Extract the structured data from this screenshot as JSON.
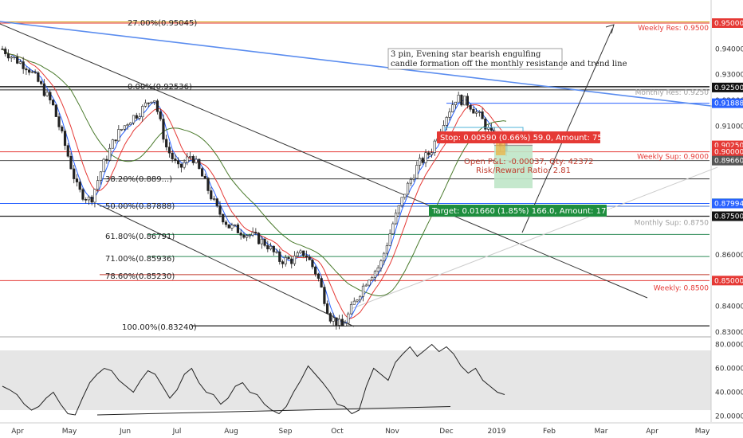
{
  "chart_data": [
    {
      "type": "candlestick",
      "title": "",
      "instrument_scale": "price",
      "x_ticks": [
        "Apr",
        "May",
        "Jun",
        "Jul",
        "Aug",
        "Sep",
        "Oct",
        "Nov",
        "Dec",
        "2019",
        "Feb",
        "Mar",
        "Apr",
        "May"
      ],
      "y_ticks": [
        "0.94000",
        "0.93000",
        "0.92000",
        "0.91000",
        "0.90000",
        "0.88000",
        "0.87500",
        "0.86000",
        "0.85000",
        "0.84000",
        "0.83000"
      ],
      "ylim": [
        0.8265,
        0.953
      ],
      "grid": false,
      "close_path": [
        [
          "Apr",
          0.94
        ],
        [
          "Apr",
          0.936
        ],
        [
          "Apr",
          0.933
        ],
        [
          "May",
          0.926
        ],
        [
          "May",
          0.918
        ],
        [
          "May",
          0.902
        ],
        [
          "May",
          0.885
        ],
        [
          "May",
          0.881
        ],
        [
          "Jun",
          0.895
        ],
        [
          "Jun",
          0.906
        ],
        [
          "Jun",
          0.912
        ],
        [
          "Jun",
          0.916
        ],
        [
          "Jun",
          0.922
        ],
        [
          "Jul",
          0.902
        ],
        [
          "Jul",
          0.893
        ],
        [
          "Jul",
          0.899
        ],
        [
          "Jul",
          0.889
        ],
        [
          "Aug",
          0.878
        ],
        [
          "Aug",
          0.871
        ],
        [
          "Aug",
          0.869
        ],
        [
          "Aug",
          0.867
        ],
        [
          "Sep",
          0.864
        ],
        [
          "Sep",
          0.858
        ],
        [
          "Sep",
          0.858
        ],
        [
          "Sep",
          0.861
        ],
        [
          "Oct",
          0.852
        ],
        [
          "Oct",
          0.836
        ],
        [
          "Oct",
          0.832
        ],
        [
          "Oct",
          0.842
        ],
        [
          "Oct",
          0.851
        ],
        [
          "Nov",
          0.856
        ],
        [
          "Nov",
          0.872
        ],
        [
          "Nov",
          0.885
        ],
        [
          "Nov",
          0.895
        ],
        [
          "Nov",
          0.9
        ],
        [
          "Dec",
          0.912
        ],
        [
          "Dec",
          0.921
        ],
        [
          "Dec",
          0.919
        ],
        [
          "Dec",
          0.913
        ],
        [
          "2019",
          0.905
        ],
        [
          "2019",
          0.901
        ]
      ],
      "fib_levels": [
        {
          "label": "27.00%(0.95045)",
          "value": 0.95045,
          "color": "#d4a017"
        },
        {
          "label": "0.00%(0.92536)",
          "value": 0.92536,
          "color": "#333333"
        },
        {
          "label": "38.20%(0.889...)",
          "value": 0.8895,
          "color": "#333333"
        },
        {
          "label": "50.00%(0.87888)",
          "value": 0.87888,
          "color": "#3f6fd6"
        },
        {
          "label": "61.80%(0.86791)",
          "value": 0.86791,
          "color": "#2e8b57"
        },
        {
          "label": "71.00%(0.85936)",
          "value": 0.85936,
          "color": "#2e8b57"
        },
        {
          "label": "78.60%(0.85230)",
          "value": 0.8523,
          "color": "#c0392b"
        },
        {
          "label": "100.00%(0.83240)",
          "value": 0.8324,
          "color": "#333333"
        }
      ],
      "level_lines": [
        {
          "label": "Weekly Res: 0.9500",
          "value": 0.95,
          "color": "#e53935"
        },
        {
          "label": "Monthly Res: 0.9250",
          "value": 0.925,
          "color": "#9e9e9e"
        },
        {
          "label": "Weekly Sup: 0.9000",
          "value": 0.9,
          "color": "#e53935"
        },
        {
          "label": "Monthly Sup: 0.8750",
          "value": 0.875,
          "color": "#9e9e9e"
        },
        {
          "label": "Weekly: 0.8500",
          "value": 0.85,
          "color": "#e53935"
        }
      ],
      "price_tags": [
        {
          "text": "0.95000",
          "value": 0.95,
          "color": "#e53935"
        },
        {
          "text": "0.92500",
          "value": 0.925,
          "color": "#111111"
        },
        {
          "text": "0.91888",
          "value": 0.91888,
          "color": "#2962ff"
        },
        {
          "text": "0.90250",
          "value": 0.9025,
          "color": "#e53935"
        },
        {
          "text": "0.90000",
          "value": 0.9,
          "color": "#e53935"
        },
        {
          "text": "0.89697",
          "value": 0.89697,
          "color": "#e53935"
        },
        {
          "text": "0.89660",
          "value": 0.8966,
          "color": "#555555"
        },
        {
          "text": "0.88000",
          "value": 0.88,
          "color": "#1e8e3e"
        },
        {
          "text": "0.87994",
          "value": 0.87994,
          "color": "#2962ff"
        },
        {
          "text": "0.87500",
          "value": 0.875,
          "color": "#111111"
        },
        {
          "text": "0.85000",
          "value": 0.85,
          "color": "#e53935"
        }
      ],
      "annotation": "3 pin, Evening star bearish engulfing candle formation off the monthly resistance and trend line",
      "position": {
        "stop_label": "Stop: 0.00590 (0.66%) 59.0, Amount: 750.01",
        "pnl_label": "Open P&L: -0.00037, Qty: 42372",
        "rr_label": "Risk/Reward Ratio: 2.81",
        "target_label": "Target: 0.01660 (1.85%) 166.0, Amount: 1703.38",
        "entry": 0.9025,
        "stop": 0.9084,
        "target": 0.8859
      }
    },
    {
      "type": "line",
      "title": "",
      "y_ticks": [
        "80.0000",
        "60.0000",
        "40.0000",
        "20.0000"
      ],
      "ylim": [
        17,
        83
      ],
      "band": [
        25,
        75
      ],
      "values": [
        45,
        42,
        38,
        30,
        25,
        28,
        35,
        40,
        30,
        22,
        21,
        35,
        48,
        55,
        60,
        58,
        50,
        45,
        40,
        50,
        58,
        55,
        45,
        35,
        42,
        55,
        60,
        48,
        40,
        38,
        30,
        35,
        45,
        48,
        40,
        38,
        30,
        25,
        22,
        28,
        40,
        50,
        62,
        55,
        48,
        40,
        30,
        28,
        22,
        25,
        45,
        60,
        55,
        50,
        65,
        72,
        78,
        70,
        75,
        80,
        74,
        78,
        72,
        62,
        56,
        60,
        50,
        45,
        40,
        38
      ]
    }
  ]
}
